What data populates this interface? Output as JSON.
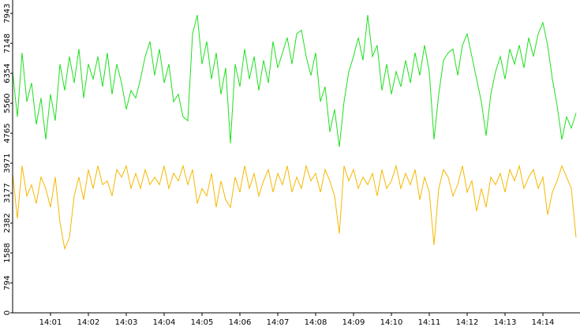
{
  "chart_data": {
    "type": "line",
    "categories": [
      null,
      null,
      null,
      null,
      null,
      null,
      null,
      null,
      "14:01",
      null,
      null,
      null,
      null,
      null,
      null,
      null,
      "14:02",
      null,
      null,
      null,
      null,
      null,
      null,
      null,
      "14:03",
      null,
      null,
      null,
      null,
      null,
      null,
      null,
      "14:04",
      null,
      null,
      null,
      null,
      null,
      null,
      null,
      "14:05",
      null,
      null,
      null,
      null,
      null,
      null,
      null,
      "14:06",
      null,
      null,
      null,
      null,
      null,
      null,
      null,
      "14:07",
      null,
      null,
      null,
      null,
      null,
      null,
      null,
      "14:08",
      null,
      null,
      null,
      null,
      null,
      null,
      null,
      "14:09",
      null,
      null,
      null,
      null,
      null,
      null,
      null,
      "14:10",
      null,
      null,
      null,
      null,
      null,
      null,
      null,
      "14:11",
      null,
      null,
      null,
      null,
      null,
      null,
      null,
      "14:12",
      null,
      null,
      null,
      null,
      null,
      null,
      null,
      "14:13",
      null,
      null,
      null,
      null,
      null,
      null,
      null,
      "14:14",
      null,
      null,
      null,
      null,
      null,
      null,
      null
    ],
    "series": [
      {
        "color": "#1ee01e",
        "values": [
          6400,
          5200,
          6900,
          5600,
          6100,
          5000,
          5700,
          4600,
          5800,
          5100,
          6600,
          5900,
          6800,
          6100,
          7000,
          5700,
          6600,
          6200,
          6800,
          6000,
          6900,
          5800,
          6600,
          6100,
          5400,
          5900,
          5700,
          6200,
          6800,
          7200,
          6300,
          7000,
          6100,
          6600,
          5600,
          5800,
          5200,
          5100,
          7400,
          7900,
          6600,
          7200,
          6200,
          6900,
          5800,
          6500,
          4500,
          6600,
          6000,
          7000,
          6200,
          6800,
          5900,
          6700,
          6100,
          7200,
          6500,
          6900,
          7300,
          6600,
          7400,
          7500,
          6800,
          6300,
          6900,
          5600,
          6000,
          4800,
          5400,
          4400,
          5600,
          6400,
          6800,
          7300,
          6700,
          7900,
          6800,
          7100,
          5900,
          6600,
          5800,
          6400,
          6000,
          6700,
          6100,
          6900,
          6300,
          7100,
          6400,
          4600,
          5800,
          6700,
          6900,
          7000,
          6300,
          7100,
          7400,
          6800,
          6200,
          5600,
          4700,
          5800,
          6400,
          6800,
          6200,
          7000,
          6600,
          7100,
          6500,
          7300,
          6800,
          7400,
          7700,
          7100,
          6200,
          5500,
          4600,
          5200,
          4900,
          5300
        ]
      },
      {
        "color": "#f5b800",
        "values": [
          3700,
          2500,
          3900,
          3100,
          3400,
          2900,
          3600,
          3300,
          2800,
          3600,
          2400,
          1700,
          2000,
          3100,
          3600,
          3000,
          3800,
          3300,
          3900,
          3400,
          3500,
          3100,
          3800,
          3600,
          3900,
          3300,
          3700,
          3300,
          3800,
          3400,
          3600,
          3400,
          3900,
          3300,
          3700,
          3500,
          3900,
          3400,
          3800,
          2900,
          3300,
          3100,
          3700,
          2800,
          3500,
          3000,
          2800,
          3600,
          3200,
          3900,
          3300,
          3700,
          3100,
          3500,
          3800,
          3200,
          3700,
          3400,
          3900,
          3200,
          3600,
          3300,
          3900,
          3500,
          3700,
          3200,
          3800,
          3500,
          3100,
          2100,
          3900,
          3500,
          3800,
          3300,
          3600,
          3400,
          3700,
          3100,
          3800,
          3300,
          3500,
          3900,
          3300,
          3700,
          3400,
          3800,
          3000,
          3600,
          3200,
          1800,
          3300,
          3800,
          3600,
          3100,
          3400,
          3900,
          3200,
          3500,
          2700,
          3300,
          2800,
          3600,
          3400,
          3700,
          3200,
          3800,
          3500,
          3900,
          3300,
          3600,
          3800,
          3300,
          3600,
          2600,
          3200,
          3500,
          3900,
          3600,
          3300,
          2000
        ]
      }
    ],
    "ylim": [
      0,
      8300
    ],
    "yticks": [
      0,
      794,
      1588,
      2382,
      3177,
      3971,
      4765,
      5560,
      6354,
      7148,
      7943
    ]
  }
}
